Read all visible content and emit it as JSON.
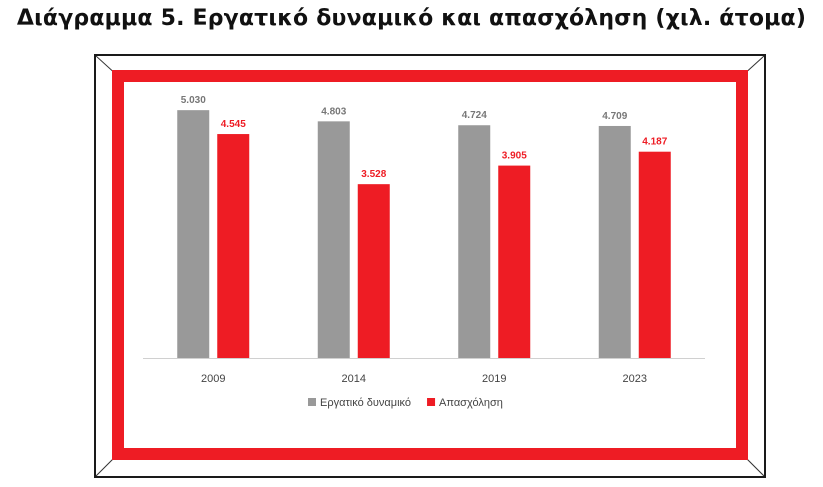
{
  "title": "Διάγραμμα 5. Εργατικό δυναμικό και απασχόληση (χιλ. άτομα)",
  "colors": {
    "frame_red": "#ee1c24",
    "gray_series": "#999999",
    "red_series": "#ee1c24",
    "axis": "#d0d0d0",
    "tick_text": "#444444",
    "gray_label": "#777777"
  },
  "chart_data": {
    "type": "bar",
    "categories": [
      "2009",
      "2014",
      "2019",
      "2023"
    ],
    "series": [
      {
        "name": "Εργατικό δυναμικό",
        "values": [
          5030,
          4803,
          4724,
          4709
        ],
        "labels": [
          "5.030",
          "4.803",
          "4.724",
          "4.709"
        ],
        "color": "#999999",
        "label_color": "#777777"
      },
      {
        "name": "Απασχόληση",
        "values": [
          4545,
          3528,
          3905,
          4187
        ],
        "labels": [
          "4.545",
          "3.528",
          "3.905",
          "4.187"
        ],
        "color": "#ee1c24",
        "label_color": "#ee1c24"
      }
    ],
    "ylim": [
      0,
      5500
    ],
    "legend": "bottom",
    "grid": false
  }
}
